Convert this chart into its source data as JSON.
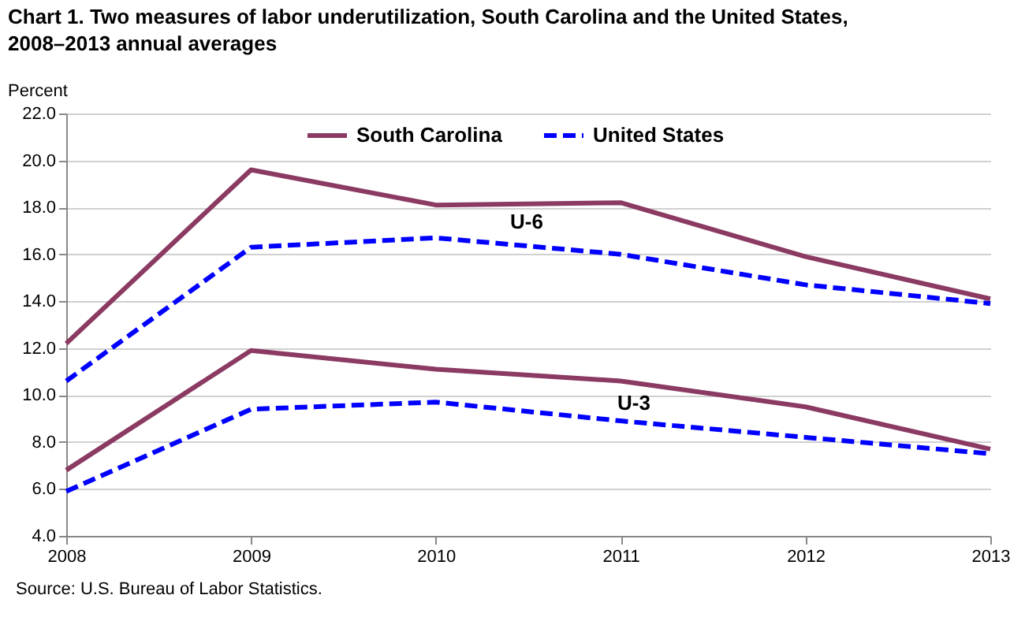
{
  "chart_data": {
    "type": "line",
    "title": "Chart 1. Two measures of labor underutilization, South Carolina and the United States, 2008–2013  annual averages",
    "ylabel": "Percent",
    "x": [
      2008,
      2009,
      2010,
      2011,
      2012,
      2013
    ],
    "xlim": [
      2008,
      2013
    ],
    "xticks": [
      2008,
      2009,
      2010,
      2011,
      2012,
      2013
    ],
    "ylim": [
      4,
      22
    ],
    "yticks": [
      {
        "value": 4,
        "label": "4.0"
      },
      {
        "value": 6,
        "label": "6.0"
      },
      {
        "value": 8,
        "label": "8.0"
      },
      {
        "value": 10,
        "label": "10.0"
      },
      {
        "value": 12,
        "label": "12.0"
      },
      {
        "value": 14,
        "label": "14.0"
      },
      {
        "value": 16,
        "label": "16.0"
      },
      {
        "value": 18,
        "label": "18.0"
      },
      {
        "value": 20,
        "label": "20.0"
      },
      {
        "value": 22,
        "label": "22.0"
      }
    ],
    "series": [
      {
        "name": "South Carolina",
        "color": "#8b3a62",
        "line_style": "solid",
        "values": [
          12.2,
          19.6,
          18.1,
          18.2,
          15.9,
          14.1
        ]
      },
      {
        "name": "United States",
        "color": "#0000ff",
        "line_style": "dashed",
        "values": [
          10.6,
          16.3,
          16.7,
          16.0,
          14.7,
          13.9
        ]
      },
      {
        "color": "#8b3a62",
        "line_style": "solid",
        "values": [
          6.8,
          11.9,
          11.1,
          10.6,
          9.5,
          7.7
        ]
      },
      {
        "color": "#0000ff",
        "line_style": "dashed",
        "values": [
          5.9,
          9.4,
          9.7,
          8.9,
          8.2,
          7.5
        ]
      }
    ],
    "annotations": [
      "U-6",
      "U-3",
      "Source: U.S. Bureau of Labor Statistics."
    ],
    "grid": "y",
    "legend": "top",
    "marker": "none"
  }
}
